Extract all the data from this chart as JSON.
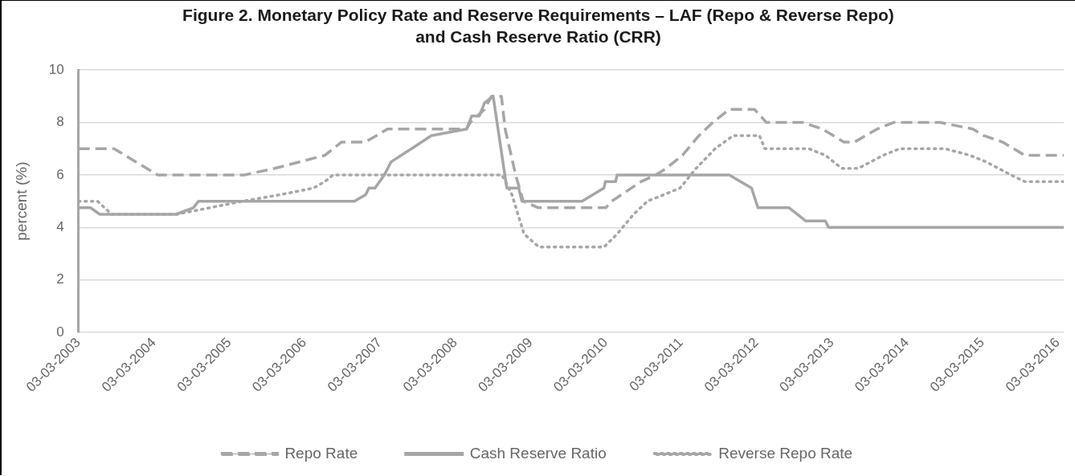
{
  "chart_data": {
    "type": "line",
    "title": "Figure 2. Monetary Policy Rate and Reserve Requirements – LAF (Repo & Reverse Repo) and Cash Reserve Ratio (CRR)",
    "ylabel": "percent (%)",
    "xlim": [
      "2003-03-03",
      "2016-04-01"
    ],
    "ylim": [
      0,
      10
    ],
    "yticks": [
      0,
      2,
      4,
      6,
      8,
      10
    ],
    "xticks": [
      {
        "value": "2003-03-03",
        "label": "03-03-2003"
      },
      {
        "value": "2004-03-03",
        "label": "03-03-2004"
      },
      {
        "value": "2005-03-03",
        "label": "03-03-2005"
      },
      {
        "value": "2006-03-03",
        "label": "03-03-2006"
      },
      {
        "value": "2007-03-03",
        "label": "03-03-2007"
      },
      {
        "value": "2008-03-03",
        "label": "03-03-2008"
      },
      {
        "value": "2009-03-03",
        "label": "03-03-2009"
      },
      {
        "value": "2010-03-03",
        "label": "03-03-2010"
      },
      {
        "value": "2011-03-03",
        "label": "03-03-2011"
      },
      {
        "value": "2012-03-03",
        "label": "03-03-2012"
      },
      {
        "value": "2013-03-03",
        "label": "03-03-2013"
      },
      {
        "value": "2014-03-03",
        "label": "03-03-2014"
      },
      {
        "value": "2015-03-03",
        "label": "03-03-2015"
      },
      {
        "value": "2016-03-03",
        "label": "03-03-2016"
      }
    ],
    "grid": "y",
    "legend": "bottom",
    "marker": "none",
    "series": [
      {
        "name": "Repo Rate",
        "color": "#a6a6a6",
        "line_style": "dashed",
        "x": [
          "2003-03-03",
          "2003-08-22",
          "2004-03-21",
          "2005-05-15",
          "2005-10-09",
          "2006-06-10",
          "2006-08-29",
          "2006-12-21",
          "2007-02-15",
          "2007-04-09",
          "2008-04-27",
          "2008-05-15",
          "2008-07-23",
          "2008-08-26",
          "2008-10-13",
          "2008-10-31",
          "2008-12-21",
          "2009-01-27",
          "2009-04-09",
          "2010-03-03",
          "2010-04-01",
          "2010-08-22",
          "2010-10-31",
          "2010-12-21",
          "2011-03-10",
          "2011-05-29",
          "2011-08-04",
          "2011-10-23",
          "2012-02-22",
          "2012-04-20",
          "2012-10-16",
          "2013-01-16",
          "2013-05-01",
          "2013-06-21",
          "2013-10-09",
          "2013-12-28",
          "2014-08-11",
          "2015-01-16",
          "2015-03-10",
          "2015-06-10",
          "2015-09-25",
          "2016-04-01"
        ],
        "values": [
          7,
          7,
          6,
          6,
          6.25,
          6.75,
          7.25,
          7.25,
          7.5,
          7.75,
          7.75,
          8,
          8.5,
          9,
          9,
          7.75,
          6,
          5,
          4.75,
          4.75,
          5,
          5.75,
          6,
          6.25,
          6.75,
          7.5,
          8,
          8.5,
          8.5,
          8,
          8,
          7.75,
          7.25,
          7.25,
          7.75,
          8,
          8,
          7.75,
          7.5,
          7.25,
          6.75,
          6.75
        ]
      },
      {
        "name": "Cash Reserve Ratio",
        "color": "#a6a6a6",
        "line_style": "solid",
        "x": [
          "2003-03-03",
          "2003-05-01",
          "2003-06-14",
          "2004-06-17",
          "2004-09-10",
          "2004-10-05",
          "2006-10-31",
          "2006-12-25",
          "2007-01-09",
          "2007-02-08",
          "2007-03-25",
          "2007-04-27",
          "2007-08-04",
          "2007-11-08",
          "2008-04-27",
          "2008-05-22",
          "2008-06-28",
          "2008-07-23",
          "2008-09-03",
          "2008-11-08",
          "2009-01-05",
          "2009-01-20",
          "2009-11-08",
          "2010-02-22",
          "2010-03-01",
          "2010-04-20",
          "2010-04-27",
          "2011-10-23",
          "2012-02-08",
          "2012-03-10",
          "2012-08-08",
          "2012-10-27",
          "2013-01-31",
          "2013-02-15",
          "2016-04-01"
        ],
        "values": [
          4.75,
          4.75,
          4.5,
          4.5,
          4.75,
          5,
          5,
          5.25,
          5.5,
          5.5,
          6,
          6.5,
          7,
          7.5,
          7.75,
          8.25,
          8.25,
          8.75,
          9,
          5.5,
          5.5,
          5,
          5,
          5.5,
          5.75,
          5.75,
          6,
          6,
          5.5,
          4.75,
          4.75,
          4.25,
          4.25,
          4,
          4
        ]
      },
      {
        "name": "Reverse Repo Rate",
        "color": "#a6a6a6",
        "line_style": "dotted",
        "x": [
          "2003-03-03",
          "2003-06-03",
          "2003-08-11",
          "2004-06-21",
          "2004-11-29",
          "2005-05-08",
          "2005-11-08",
          "2006-04-16",
          "2006-06-10",
          "2006-07-20",
          "2008-10-16",
          "2008-12-03",
          "2009-01-01",
          "2009-01-31",
          "2009-04-13",
          "2010-02-22",
          "2010-04-27",
          "2010-07-16",
          "2010-09-21",
          "2010-12-10",
          "2011-02-26",
          "2011-05-15",
          "2011-08-15",
          "2011-11-11",
          "2012-03-17",
          "2012-04-13",
          "2012-11-11",
          "2013-01-31",
          "2013-04-20",
          "2013-07-09",
          "2013-11-08",
          "2014-01-27",
          "2014-09-03",
          "2015-01-01",
          "2015-03-21",
          "2015-07-20",
          "2015-09-25",
          "2016-04-01"
        ],
        "values": [
          5,
          5,
          4.5,
          4.5,
          4.75,
          5,
          5.25,
          5.5,
          5.75,
          6,
          6,
          5.25,
          4.5,
          3.75,
          3.25,
          3.25,
          3.75,
          4.5,
          5,
          5.25,
          5.5,
          6.25,
          7,
          7.5,
          7.5,
          7,
          7,
          6.75,
          6.25,
          6.25,
          6.75,
          7,
          7,
          6.75,
          6.5,
          6,
          5.75,
          5.75
        ]
      }
    ]
  }
}
